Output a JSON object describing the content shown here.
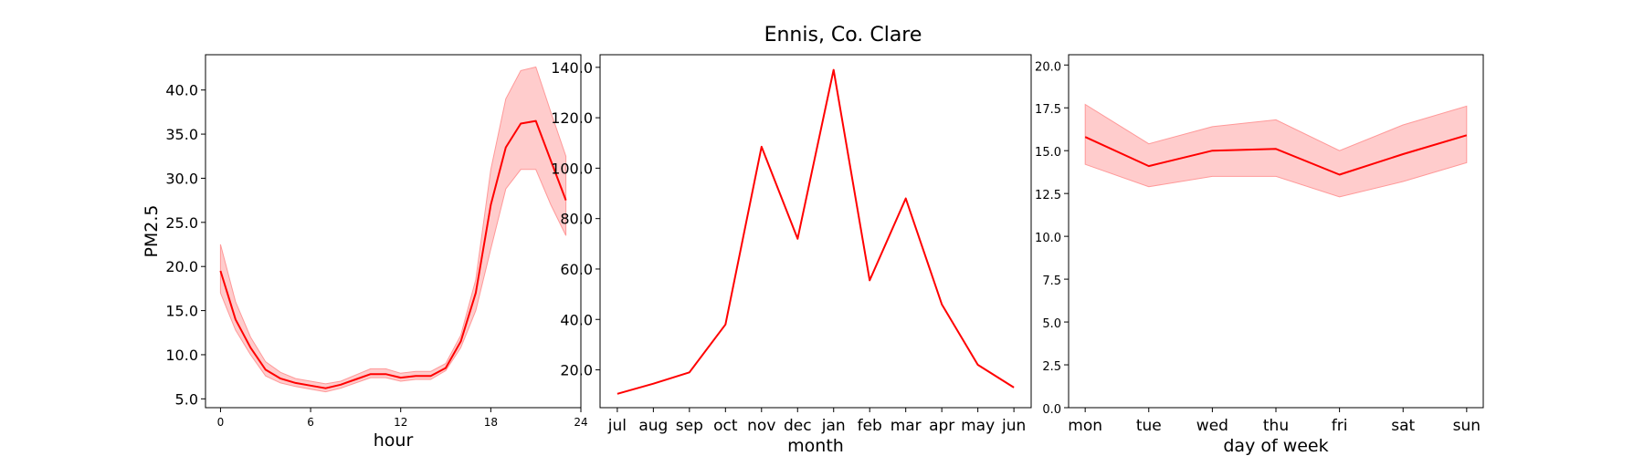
{
  "figure": {
    "title": "Ennis, Co. Clare",
    "colors": {
      "line": "#ff0000",
      "band": "#ff9999",
      "axis": "#000000"
    }
  },
  "chart_data": [
    {
      "type": "line",
      "xlabel": "hour",
      "ylabel": "PM2.5",
      "xlim": [
        -1,
        24
      ],
      "ylim": [
        4.0,
        44.0
      ],
      "x_ticks": [
        0,
        6,
        12,
        18,
        24
      ],
      "y_ticks": [
        5.0,
        10.0,
        15.0,
        20.0,
        25.0,
        30.0,
        35.0,
        40.0
      ],
      "y_tick_decimals": 1,
      "x": [
        0,
        1,
        2,
        3,
        4,
        5,
        6,
        7,
        8,
        9,
        10,
        11,
        12,
        13,
        14,
        15,
        16,
        17,
        18,
        19,
        20,
        21,
        22,
        23
      ],
      "values": [
        19.5,
        14.0,
        10.8,
        8.3,
        7.3,
        6.8,
        6.5,
        6.2,
        6.6,
        7.2,
        7.8,
        7.8,
        7.4,
        7.6,
        7.6,
        8.5,
        11.5,
        17.0,
        27.0,
        33.5,
        36.2,
        36.5,
        32.0,
        27.5
      ],
      "lower": [
        17.0,
        12.8,
        10.0,
        7.6,
        6.8,
        6.4,
        6.1,
        5.8,
        6.2,
        6.8,
        7.4,
        7.4,
        7.0,
        7.2,
        7.2,
        8.2,
        10.8,
        15.0,
        22.0,
        28.8,
        31.0,
        31.0,
        27.0,
        23.5
      ],
      "upper": [
        22.5,
        16.0,
        12.0,
        9.2,
        8.0,
        7.3,
        7.0,
        6.7,
        7.0,
        7.7,
        8.4,
        8.4,
        7.9,
        8.1,
        8.1,
        9.0,
        12.2,
        18.5,
        31.0,
        39.0,
        42.2,
        42.6,
        37.5,
        32.5
      ],
      "grid": false
    },
    {
      "type": "line",
      "xlabel": "month",
      "ylabel": "",
      "categories": [
        "jul",
        "aug",
        "sep",
        "oct",
        "nov",
        "dec",
        "jan",
        "feb",
        "mar",
        "apr",
        "may",
        "jun"
      ],
      "ylim": [
        5.0,
        145.0
      ],
      "y_ticks": [
        20.0,
        40.0,
        60.0,
        80.0,
        100.0,
        120.0,
        140.0
      ],
      "y_tick_decimals": 1,
      "values": [
        10.5,
        14.5,
        19.0,
        38.0,
        108.5,
        72.0,
        139.0,
        55.5,
        88.0,
        46.0,
        22.0,
        13.0
      ],
      "grid": false
    },
    {
      "type": "line",
      "xlabel": "day of week",
      "ylabel": "",
      "categories": [
        "mon",
        "tue",
        "wed",
        "thu",
        "fri",
        "sat",
        "sun"
      ],
      "ylim": [
        0.0,
        20.6
      ],
      "y_ticks": [
        0.0,
        2.5,
        5.0,
        7.5,
        10.0,
        12.5,
        15.0,
        17.5,
        20.0
      ],
      "y_tick_decimals": 1,
      "values": [
        15.8,
        14.1,
        15.0,
        15.1,
        13.6,
        14.8,
        15.9
      ],
      "lower": [
        14.2,
        12.9,
        13.5,
        13.5,
        12.3,
        13.2,
        14.3
      ],
      "upper": [
        17.7,
        15.4,
        16.4,
        16.8,
        15.0,
        16.5,
        17.6
      ],
      "grid": false
    }
  ]
}
